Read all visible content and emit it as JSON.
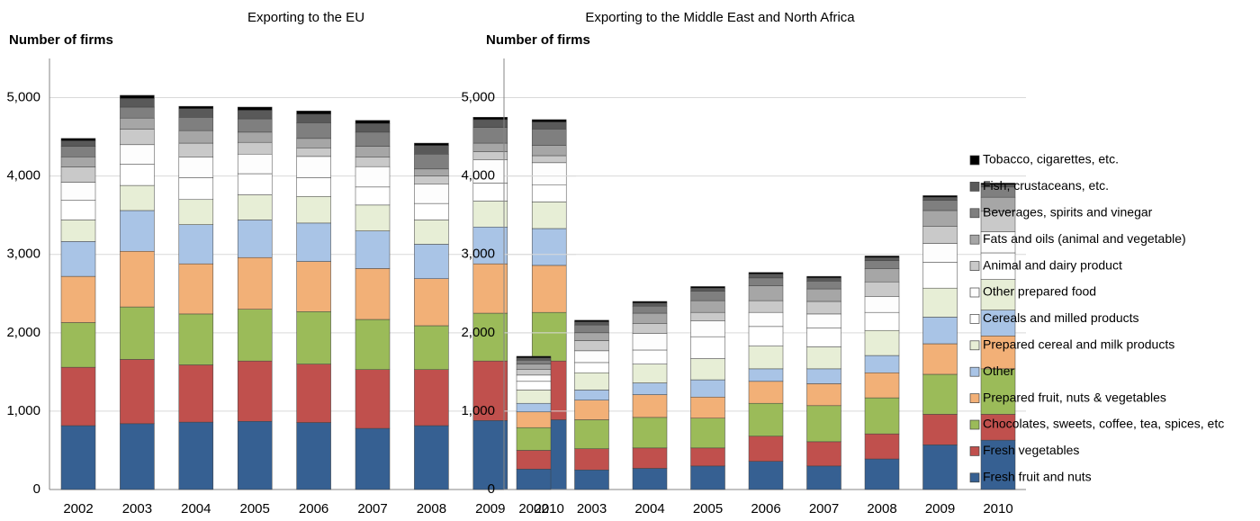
{
  "chart_data": [
    {
      "type": "bar",
      "title": "Exporting to the EU",
      "y_label": "Number of firms",
      "categories": [
        "2002",
        "2003",
        "2004",
        "2005",
        "2006",
        "2007",
        "2008",
        "2009",
        "2010"
      ],
      "ylim": [
        0,
        5500
      ],
      "yticks": [
        0,
        {
          "value": 1000,
          "label": "1,000"
        },
        {
          "value": 2000,
          "label": "2,000"
        },
        {
          "value": 3000,
          "label": "3,000"
        },
        {
          "value": 4000,
          "label": "4,000"
        },
        {
          "value": 5000,
          "label": "5,000"
        }
      ],
      "grid": true,
      "series": [
        {
          "name": "Fresh fruit and nuts",
          "color": "#366092",
          "values": [
            815,
            840,
            860,
            870,
            855,
            780,
            815,
            880,
            890
          ]
        },
        {
          "name": "Fresh vegetables",
          "color": "#c0504d",
          "values": [
            745,
            820,
            730,
            770,
            745,
            750,
            715,
            760,
            750
          ]
        },
        {
          "name": "Chocolates, sweets, coffee, tea, spices, etc",
          "color": "#9bbb59",
          "values": [
            570,
            670,
            650,
            660,
            670,
            640,
            560,
            610,
            620
          ]
        },
        {
          "name": "Prepared fruit, nuts & vegetables",
          "color": "#f2b077",
          "values": [
            590,
            710,
            640,
            660,
            640,
            650,
            600,
            630,
            600
          ]
        },
        {
          "name": "Other",
          "color": "#a9c4e6",
          "values": [
            445,
            520,
            500,
            480,
            490,
            480,
            440,
            470,
            470
          ]
        },
        {
          "name": "Prepared cereal and milk products",
          "color": "#e7eed6",
          "values": [
            275,
            320,
            320,
            320,
            340,
            330,
            310,
            330,
            340
          ]
        },
        {
          "name": "Cereals and milled products",
          "color": "#ffffff",
          "values": [
            250,
            270,
            280,
            270,
            240,
            230,
            210,
            230,
            220
          ]
        },
        {
          "name": "Other prepared food",
          "color": "#fdfdfd",
          "values": [
            230,
            250,
            260,
            250,
            270,
            260,
            250,
            300,
            280
          ]
        },
        {
          "name": "Animal and dairy product",
          "color": "#c9c9c9",
          "values": [
            195,
            200,
            180,
            150,
            110,
            120,
            100,
            100,
            90
          ]
        },
        {
          "name": "Fats and oils (animal and vegetable)",
          "color": "#a6a6a6",
          "values": [
            130,
            140,
            160,
            130,
            120,
            140,
            90,
            110,
            130
          ]
        },
        {
          "name": "Beverages, spirits and vinegar",
          "color": "#7f7f7f",
          "values": [
            135,
            140,
            170,
            170,
            200,
            180,
            190,
            200,
            210
          ]
        },
        {
          "name": "Fish, crustaceans, etc.",
          "color": "#595959",
          "values": [
            70,
            110,
            110,
            110,
            110,
            110,
            110,
            100,
            90
          ]
        },
        {
          "name": "Tobacco, cigarettes, etc.",
          "color": "#000000",
          "values": [
            30,
            40,
            30,
            40,
            40,
            40,
            30,
            30,
            30
          ]
        }
      ]
    },
    {
      "type": "bar",
      "title": "Exporting to the Middle East and North Africa",
      "y_label": "Number of firms",
      "categories": [
        "2002",
        "2003",
        "2004",
        "2005",
        "2006",
        "2007",
        "2008",
        "2009",
        "2010"
      ],
      "ylim": [
        0,
        5500
      ],
      "yticks": [
        0,
        {
          "value": 1000,
          "label": "1,000"
        },
        {
          "value": 2000,
          "label": "2,000"
        },
        {
          "value": 3000,
          "label": "3,000"
        },
        {
          "value": 4000,
          "label": "4,000"
        },
        {
          "value": 5000,
          "label": "5,000"
        }
      ],
      "grid": true,
      "series": [
        {
          "values": [
            260,
            250,
            270,
            300,
            360,
            300,
            390,
            570,
            630
          ]
        },
        {
          "values": [
            240,
            270,
            260,
            230,
            320,
            310,
            320,
            390,
            330
          ]
        },
        {
          "values": [
            290,
            370,
            390,
            380,
            420,
            460,
            460,
            510,
            580
          ]
        },
        {
          "values": [
            200,
            250,
            290,
            270,
            280,
            280,
            320,
            390,
            420
          ]
        },
        {
          "values": [
            110,
            130,
            150,
            220,
            160,
            190,
            220,
            340,
            330
          ]
        },
        {
          "values": [
            170,
            220,
            240,
            270,
            290,
            280,
            320,
            370,
            390
          ]
        },
        {
          "values": [
            110,
            130,
            180,
            280,
            250,
            240,
            230,
            330,
            340
          ]
        },
        {
          "values": [
            80,
            150,
            210,
            200,
            180,
            180,
            200,
            240,
            270
          ]
        },
        {
          "values": [
            70,
            130,
            130,
            110,
            150,
            160,
            190,
            220,
            260
          ]
        },
        {
          "values": [
            70,
            100,
            130,
            150,
            190,
            160,
            170,
            200,
            180
          ]
        },
        {
          "values": [
            50,
            100,
            90,
            120,
            100,
            100,
            100,
            130,
            130
          ]
        },
        {
          "values": [
            30,
            40,
            40,
            40,
            50,
            40,
            40,
            40,
            30
          ]
        },
        {
          "values": [
            20,
            20,
            20,
            20,
            20,
            20,
            20,
            20,
            20
          ]
        }
      ]
    }
  ]
}
